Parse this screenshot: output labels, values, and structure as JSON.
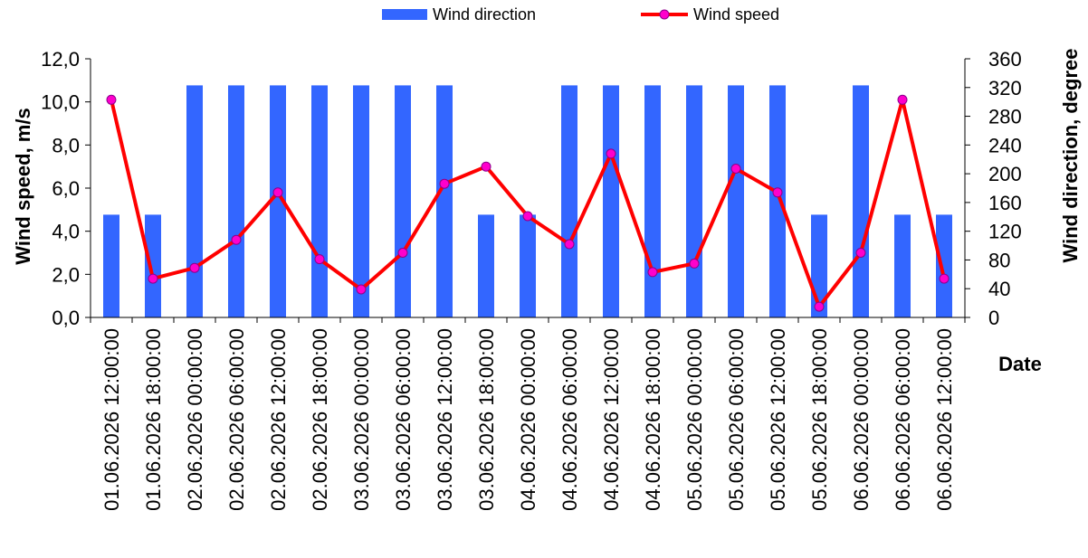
{
  "chart_data": {
    "type": "bar+line",
    "x_title": "Date",
    "y_left_title": "Wind speed, m/s",
    "y_right_title": "Wind direction, degree",
    "y_left_range": [
      0,
      12
    ],
    "y_left_ticks": [
      "0,0",
      "2,0",
      "4,0",
      "6,0",
      "8,0",
      "10,0",
      "12,0"
    ],
    "y_right_range": [
      0,
      360
    ],
    "y_right_ticks": [
      "0",
      "40",
      "80",
      "120",
      "160",
      "200",
      "240",
      "280",
      "320",
      "360"
    ],
    "categories": [
      "01.06.2026 12:00:00",
      "01.06.2026 18:00:00",
      "02.06.2026 00:00:00",
      "02.06.2026 06:00:00",
      "02.06.2026 12:00:00",
      "02.06.2026 18:00:00",
      "03.06.2026 00:00:00",
      "03.06.2026 06:00:00",
      "03.06.2026 12:00:00",
      "03.06.2026 18:00:00",
      "04.06.2026 00:00:00",
      "04.06.2026 06:00:00",
      "04.06.2026 12:00:00",
      "04.06.2026 18:00:00",
      "05.06.2026 00:00:00",
      "05.06.2026 06:00:00",
      "05.06.2026 12:00:00",
      "05.06.2026 18:00:00",
      "06.06.2026 00:00:00",
      "06.06.2026 06:00:00",
      "06.06.2026 12:00:00"
    ],
    "series": [
      {
        "name": "Wind direction",
        "type": "bar",
        "axis": "right",
        "color": "#3366FF",
        "values": [
          143,
          143,
          323,
          323,
          323,
          323,
          323,
          323,
          323,
          143,
          143,
          323,
          323,
          323,
          323,
          323,
          323,
          143,
          323,
          143,
          143
        ]
      },
      {
        "name": "Wind speed",
        "type": "line",
        "axis": "left",
        "color": "#FF0000",
        "marker_color": "#FF00CC",
        "values": [
          10.1,
          1.8,
          2.3,
          3.6,
          5.8,
          2.7,
          1.3,
          3.0,
          6.2,
          7.0,
          4.7,
          3.4,
          7.6,
          2.1,
          2.5,
          6.9,
          5.8,
          0.5,
          3.0,
          10.1,
          1.8
        ]
      }
    ],
    "legend_position": "top-center",
    "grid": false
  }
}
